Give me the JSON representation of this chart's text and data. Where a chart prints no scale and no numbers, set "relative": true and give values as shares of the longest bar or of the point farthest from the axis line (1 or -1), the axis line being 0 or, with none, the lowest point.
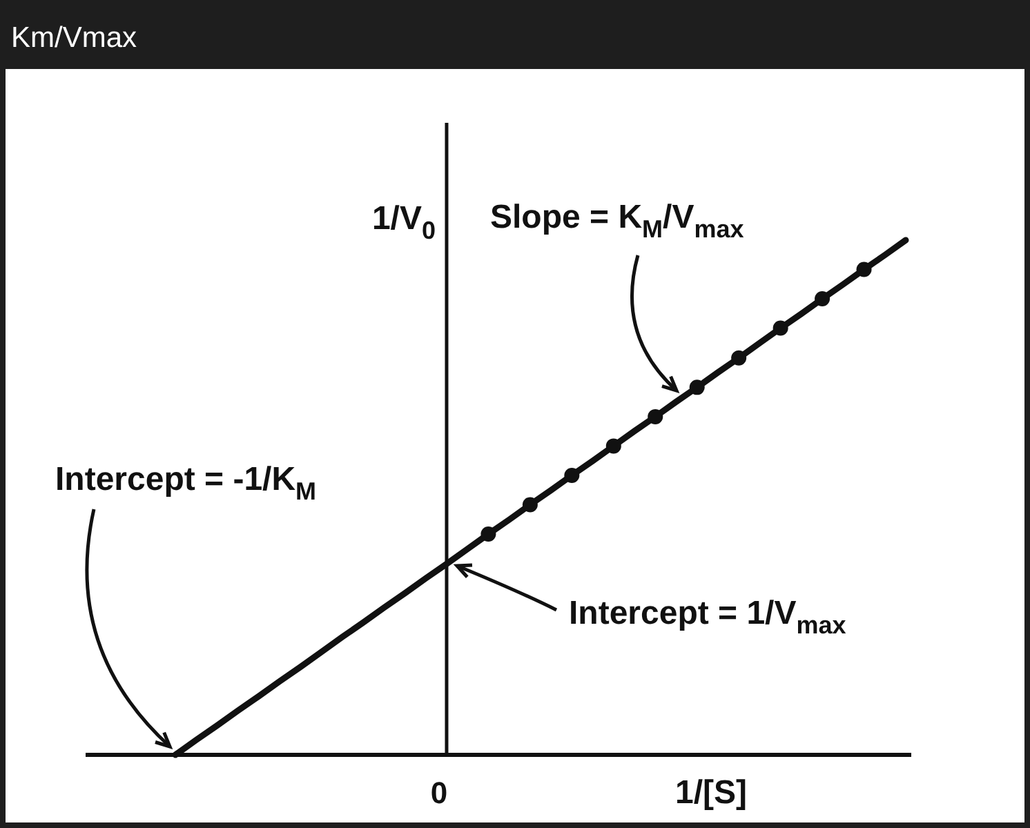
{
  "chart_data": {
    "type": "line",
    "title": "Km/Vmax",
    "xlabel": "1/[S]",
    "ylabel": "1/V$_{0}$",
    "relative": true,
    "marker": "none",
    "line_style": "solid",
    "color": "#111111",
    "categories": [
      null,
      null,
      null,
      null,
      null,
      null,
      null,
      null,
      null,
      null,
      null,
      null,
      null,
      null,
      null,
      null,
      null,
      null,
      null,
      null,
      null,
      null,
      null,
      null,
      null,
      null,
      null,
      null,
      null,
      null,
      null,
      null,
      null,
      null,
      null,
      null
    ],
    "series": [
      {
        "color": "#111111",
        "values": [
          0,
          0.029,
          0.057,
          0.086,
          0.114,
          0.143,
          0.171,
          0.2,
          0.229,
          0.257,
          0.286,
          0.314,
          0.343,
          0.371,
          0.4,
          0.429,
          0.457,
          0.486,
          0.514,
          0.543,
          0.571,
          0.6,
          0.629,
          0.657,
          0.686,
          0.714,
          0.743,
          0.771,
          0.8,
          0.829,
          0.857,
          0.886,
          0.914,
          0.943,
          0.971,
          1
        ]
      },
      {
        "line_style": "none",
        "marker": "circle",
        "values": [
          null,
          null,
          null,
          null,
          null,
          null,
          null,
          null,
          null,
          null,
          null,
          null,
          null,
          null,
          null,
          0.429,
          null,
          0.486,
          null,
          0.543,
          null,
          0.6,
          null,
          0.657,
          null,
          0.714,
          null,
          0.771,
          null,
          0.829,
          null,
          0.886,
          null,
          0.943,
          null,
          null
        ]
      }
    ],
    "annotations": [
      "Slope = K$_{M}$/V$_{max}$",
      "Intercept = -1/K$_{M}$",
      "Intercept = 1/V$_{max}$",
      "0"
    ]
  }
}
